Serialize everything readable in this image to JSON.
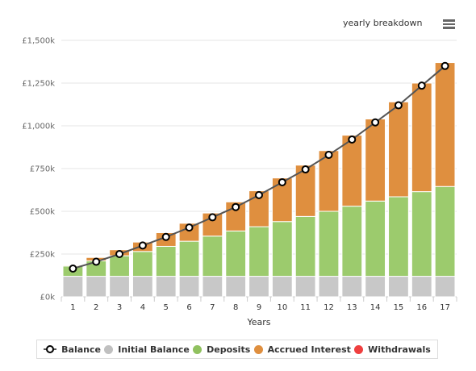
{
  "header": {
    "title": "yearly breakdown",
    "menu_icon": "hamburger-menu-icon"
  },
  "chart_data": {
    "type": "bar",
    "stacked": true,
    "xlabel": "Years",
    "ylabel": "",
    "ylim": [
      0,
      1500000
    ],
    "y_ticks": [
      "£0k",
      "£250k",
      "£500k",
      "£750k",
      "£1,000k",
      "£1,250k",
      "£1,500k"
    ],
    "y_tick_values": [
      0,
      250000,
      500000,
      750000,
      1000000,
      1250000,
      1500000
    ],
    "categories": [
      "1",
      "2",
      "3",
      "4",
      "5",
      "6",
      "7",
      "8",
      "9",
      "10",
      "11",
      "12",
      "13",
      "14",
      "15",
      "16",
      "17"
    ],
    "grid": true,
    "legend_position": "bottom",
    "series": [
      {
        "name": "Initial Balance",
        "kind": "bar",
        "color": "#c8c8c8",
        "values": [
          120000,
          120000,
          120000,
          120000,
          120000,
          120000,
          120000,
          120000,
          120000,
          120000,
          120000,
          120000,
          120000,
          120000,
          120000,
          120000,
          120000
        ]
      },
      {
        "name": "Deposits",
        "kind": "bar",
        "color": "#9ccb6d",
        "values": [
          60000,
          90000,
          120000,
          145000,
          175000,
          205000,
          235000,
          265000,
          290000,
          320000,
          350000,
          380000,
          410000,
          440000,
          465000,
          495000,
          525000
        ]
      },
      {
        "name": "Accrued Interest",
        "kind": "bar",
        "color": "#df8f3f",
        "values": [
          5000,
          20000,
          35000,
          55000,
          80000,
          105000,
          135000,
          170000,
          210000,
          255000,
          300000,
          355000,
          415000,
          480000,
          555000,
          635000,
          725000
        ]
      },
      {
        "name": "Withdrawals",
        "kind": "bar",
        "color": "#ef4444",
        "values": [
          0,
          0,
          0,
          0,
          0,
          0,
          0,
          0,
          0,
          0,
          0,
          0,
          0,
          0,
          0,
          0,
          0
        ]
      },
      {
        "name": "Balance",
        "kind": "line",
        "color": "#555555",
        "values": [
          165000,
          205000,
          250000,
          300000,
          350000,
          405000,
          465000,
          525000,
          595000,
          670000,
          745000,
          830000,
          920000,
          1020000,
          1120000,
          1235000,
          1350000
        ]
      }
    ]
  },
  "legend": [
    {
      "label": "Balance",
      "type": "line"
    },
    {
      "label": "Initial Balance",
      "color": "#c0c0c0"
    },
    {
      "label": "Deposits",
      "color": "#90c15f"
    },
    {
      "label": "Accrued Interest",
      "color": "#df8f3f"
    },
    {
      "label": "Withdrawals",
      "color": "#ef3f3f"
    }
  ]
}
